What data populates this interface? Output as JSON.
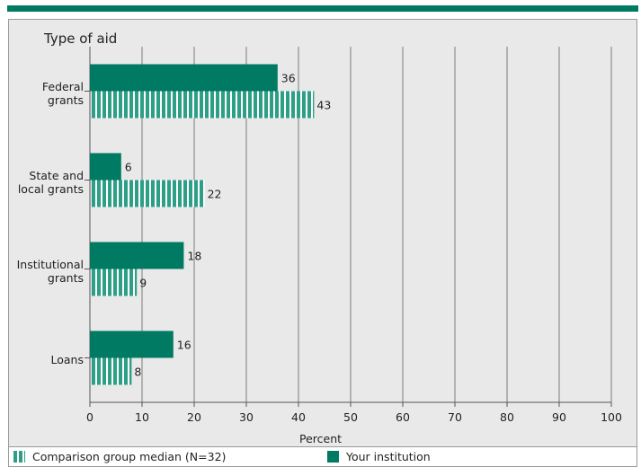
{
  "chart_data": {
    "type": "bar",
    "orientation": "horizontal",
    "y_axis_title": "Type of aid",
    "xlabel": "Percent",
    "xlim": [
      0,
      100
    ],
    "xticks": [
      0,
      10,
      20,
      30,
      40,
      50,
      60,
      70,
      80,
      90,
      100
    ],
    "categories": [
      [
        "Federal",
        "grants"
      ],
      [
        "State and",
        "local grants"
      ],
      [
        "Institutional",
        "grants"
      ],
      [
        "Loans"
      ]
    ],
    "series": [
      {
        "name": "Your institution",
        "values": [
          36,
          6,
          18,
          16
        ],
        "style": "solid",
        "color": "#007a62"
      },
      {
        "name": "Comparison group median (N=32)",
        "values": [
          43,
          22,
          9,
          8
        ],
        "style": "striped",
        "color": "#2d9f86"
      }
    ],
    "grid": true,
    "legend_position": "bottom"
  },
  "legend": {
    "comparison_label": "Comparison group median (N=32)",
    "institution_label": "Your institution"
  },
  "colors": {
    "accent": "#007a62",
    "stripe": "#2d9f86",
    "panel": "#e9e9e9"
  }
}
